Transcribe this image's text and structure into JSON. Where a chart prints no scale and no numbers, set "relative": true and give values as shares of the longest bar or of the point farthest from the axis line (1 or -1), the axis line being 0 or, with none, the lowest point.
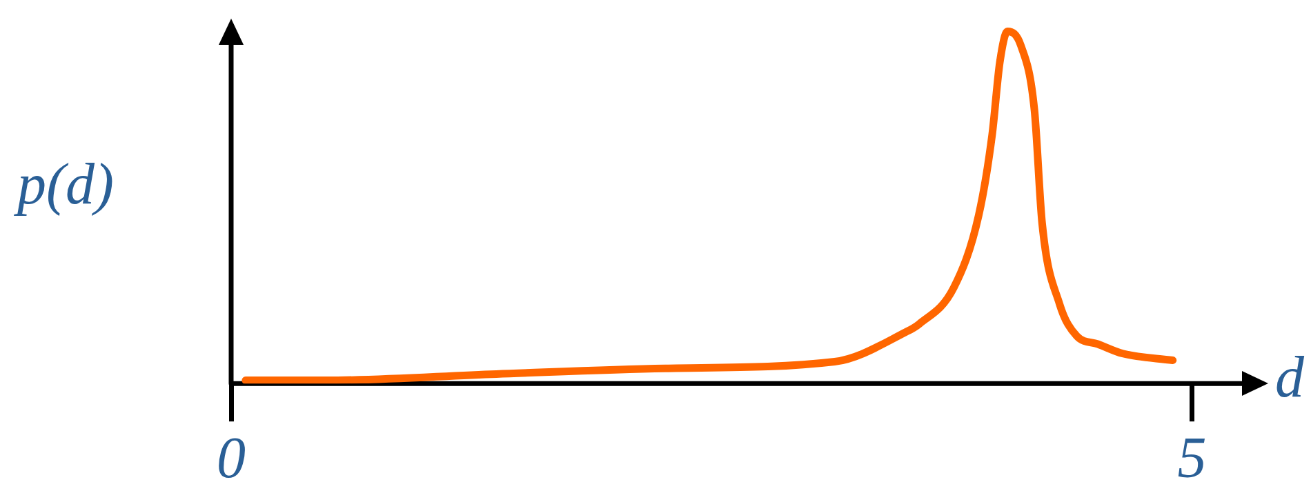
{
  "chart_data": {
    "type": "line",
    "relative": true,
    "xlabel": "d",
    "ylabel": "p(d)",
    "xlim": [
      0,
      5.26
    ],
    "xticks": [
      0,
      5
    ],
    "grid": false,
    "legend": false,
    "marker": "none",
    "line_style": "solid",
    "series": [
      {
        "color": "#ff6600",
        "x": [
          0.075,
          0.49,
          1.38,
          2.26,
          3.14,
          3.51,
          3.58,
          3.76,
          3.89,
          3.96,
          4.0,
          4.04,
          4.11,
          4.18,
          4.22,
          4.31,
          4.4,
          4.51,
          4.64,
          4.9
        ],
        "values": [
          0.009,
          0.009,
          0.027,
          0.043,
          0.062,
          0.146,
          0.169,
          0.272,
          0.478,
          0.707,
          0.913,
          1.0,
          0.959,
          0.776,
          0.455,
          0.227,
          0.135,
          0.112,
          0.085,
          0.066
        ]
      }
    ]
  }
}
